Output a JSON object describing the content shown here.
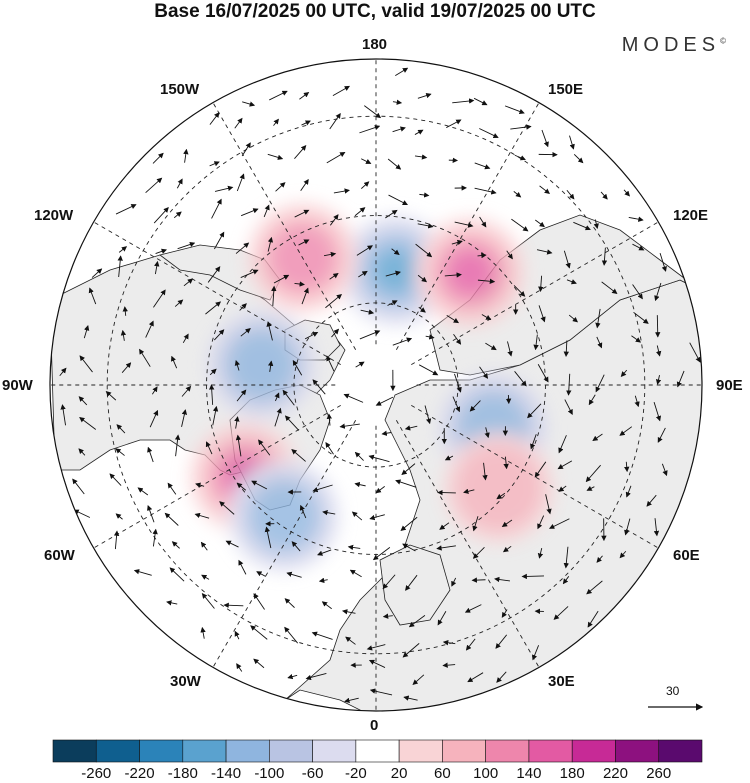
{
  "title": "Base 16/07/2025 00 UTC, valid 19/07/2025 00 UTC",
  "brand": "MODES",
  "brand_mark": "©",
  "map": {
    "projection": "polar-stereographic-north",
    "longitude_labels": {
      "top": "180",
      "bottom": "0",
      "left": "90W",
      "right": "90E",
      "upper_left_1": "150W",
      "upper_left_2": "120W",
      "upper_right_1": "150E",
      "upper_right_2": "120E",
      "lower_left_1": "60W",
      "lower_left_2": "30W",
      "lower_right_1": "60E",
      "lower_right_2": "30E"
    },
    "land_color": "#ececec",
    "ocean_color": "#ffffff"
  },
  "wind_reference": {
    "value": "30"
  },
  "colorbar": {
    "ticks": [
      "-260",
      "-220",
      "-180",
      "-140",
      "-100",
      "-60",
      "-20",
      "20",
      "60",
      "100",
      "140",
      "180",
      "220",
      "260"
    ],
    "colors": [
      "#0b3d5c",
      "#0f5f8f",
      "#2b83b9",
      "#5aa2cf",
      "#8fb5df",
      "#b9c4e3",
      "#dcdcef",
      "#ffffff",
      "#f9d4d6",
      "#f6b3bd",
      "#ee86ac",
      "#e35aa3",
      "#c72a96",
      "#8d117f",
      "#5a0a6e"
    ]
  },
  "anomalies": [
    {
      "lon": 170,
      "lat": 62,
      "value": -150
    },
    {
      "lon": -150,
      "lat": 55,
      "value": 120
    },
    {
      "lon": 140,
      "lat": 55,
      "value": 130
    },
    {
      "lon": -55,
      "lat": 52,
      "value": 190
    },
    {
      "lon": -35,
      "lat": 52,
      "value": -120
    },
    {
      "lon": 70,
      "lat": 60,
      "value": -110
    },
    {
      "lon": 50,
      "lat": 52,
      "value": 80
    },
    {
      "lon": -100,
      "lat": 62,
      "value": -90
    }
  ]
}
